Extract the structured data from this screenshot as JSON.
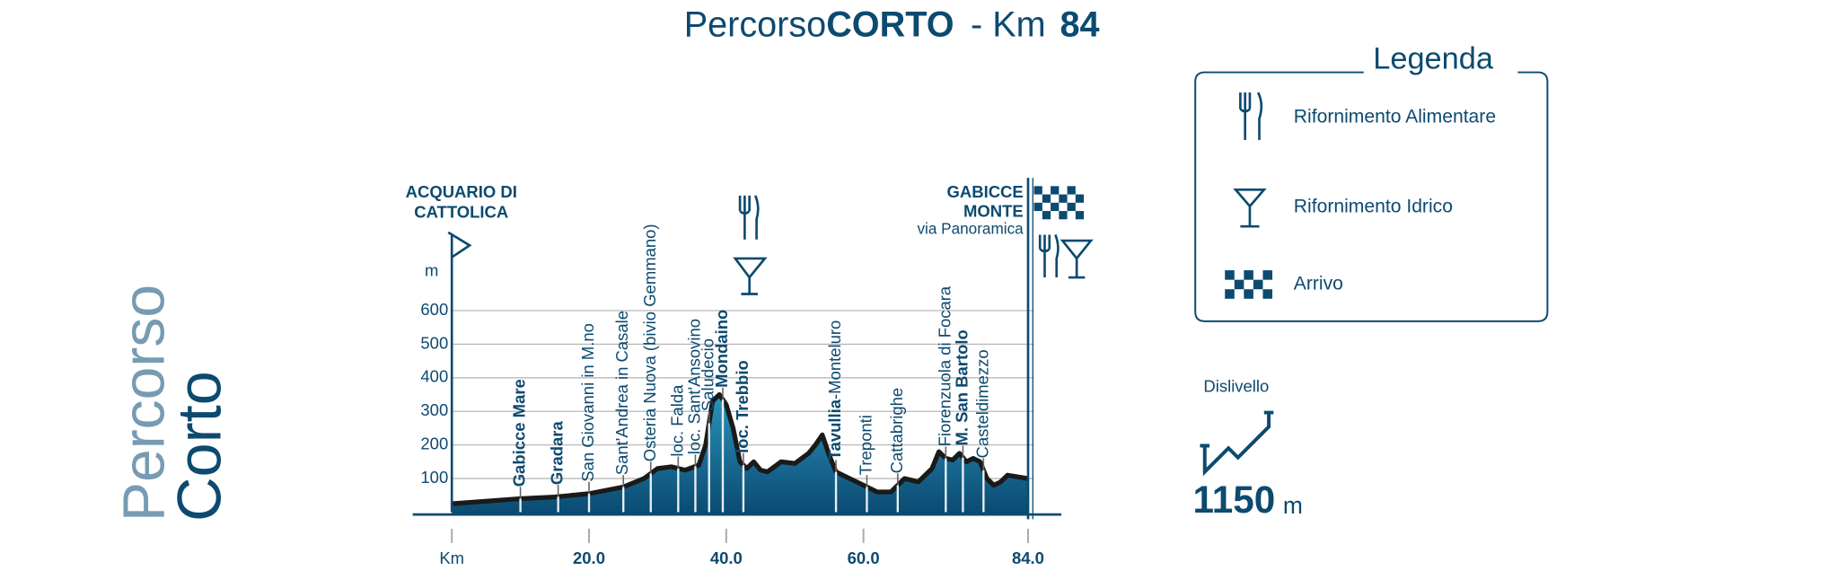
{
  "chart_data": {
    "type": "elevation-profile",
    "title": [
      "Percorso",
      "CORTO",
      "- Km",
      "84"
    ],
    "side_title": [
      "Percorso",
      "Corto"
    ],
    "y_label": "m",
    "start": {
      "name": [
        "ACQUARIO DI",
        "CATTOLICA"
      ],
      "x": 0
    },
    "finish": {
      "name": [
        "GABICCE",
        "MONTE"
      ],
      "sub": "via Panoramica",
      "x": 84
    },
    "xlim": [
      0,
      84
    ],
    "ylim": [
      0,
      600
    ],
    "xticks": [
      {
        "value": 0,
        "label": "Km"
      },
      {
        "value": 20,
        "label": "20.0"
      },
      {
        "value": 40,
        "label": "40.0"
      },
      {
        "value": 60,
        "label": "60.0"
      },
      {
        "value": 84,
        "label": "84.0"
      }
    ],
    "yticks": [
      100,
      200,
      300,
      400,
      500,
      600
    ],
    "grid": true,
    "x": [
      0,
      10,
      15,
      20,
      25,
      28,
      30,
      32,
      34,
      36,
      37,
      38,
      39,
      40,
      41,
      42,
      43,
      44,
      45,
      46,
      48,
      50,
      52,
      53,
      54,
      55,
      56,
      58,
      60,
      62,
      64,
      66,
      68,
      70,
      71,
      72,
      73,
      74,
      75,
      76,
      77,
      78,
      79,
      80,
      81,
      84
    ],
    "values": [
      25,
      40,
      45,
      55,
      75,
      100,
      130,
      135,
      125,
      140,
      200,
      330,
      350,
      320,
      250,
      150,
      130,
      150,
      125,
      120,
      150,
      145,
      175,
      200,
      230,
      170,
      120,
      100,
      80,
      60,
      60,
      100,
      90,
      130,
      180,
      160,
      155,
      175,
      150,
      160,
      150,
      100,
      80,
      90,
      110,
      100
    ],
    "points": [
      {
        "name": "Gabicce Mare",
        "x": 10,
        "bold": true
      },
      {
        "name": "Gradara",
        "x": 15.5,
        "bold": true
      },
      {
        "name": "San Giovanni in M.no",
        "x": 20
      },
      {
        "name": "Sant'Andrea in Casale",
        "x": 25
      },
      {
        "name": "Osteria Nuova (bivio Gemmano)",
        "x": 29
      },
      {
        "name": "loc. Falda",
        "x": 33
      },
      {
        "name": "loc. Sant'Ansovino",
        "x": 35.5
      },
      {
        "name": "Saludecio",
        "x": 37.5
      },
      {
        "name": "Mondaino",
        "x": 39.5,
        "bold": true
      },
      {
        "name": "loc. Trebbio",
        "x": 42.5,
        "bold": true
      },
      {
        "name": "Tavullia",
        "sub": "-Monteluro",
        "x": 56,
        "bold": true
      },
      {
        "name": "Treponti",
        "x": 60.5
      },
      {
        "name": "Cattabrighe",
        "x": 65
      },
      {
        "name": "Fiorenzuola di Focara",
        "x": 72
      },
      {
        "name": "M. San Bartolo",
        "x": 74.5,
        "bold": true
      },
      {
        "name": "Casteldimezzo",
        "x": 77.5
      }
    ],
    "legend": {
      "title": "Legenda",
      "items": [
        "Rifornimento Alimentare",
        "Rifornimento Idrico",
        "Arrivo"
      ]
    },
    "elevation_gain": {
      "label": "Dislivello",
      "value": 1150,
      "unit": "m"
    },
    "color": "#0c4a70"
  }
}
